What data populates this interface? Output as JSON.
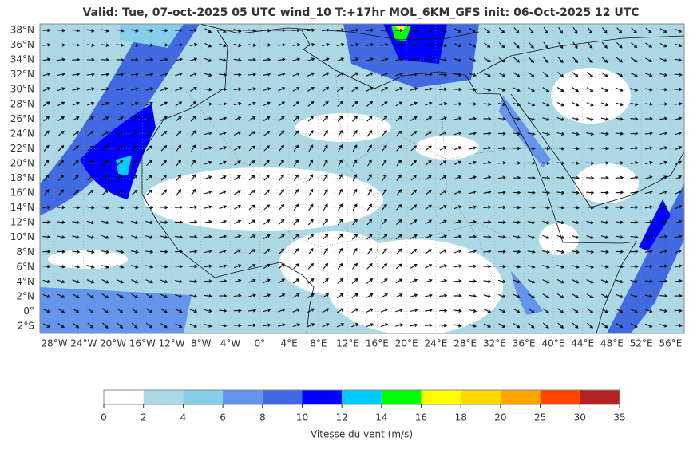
{
  "header": {
    "title": "Valid: Tue, 07-oct-2025   05 UTC   wind_10   T:+17hr   MOL_6KM_GFS   init: 06-Oct-2025    12 UTC"
  },
  "map": {
    "lat_labels": [
      "38°N",
      "36°N",
      "34°N",
      "32°N",
      "30°N",
      "28°N",
      "26°N",
      "24°N",
      "22°N",
      "20°N",
      "18°N",
      "16°N",
      "14°N",
      "12°N",
      "10°N",
      "8°N",
      "6°N",
      "4°N",
      "2°N",
      "0°",
      "2°S"
    ],
    "lon_labels": [
      "28°W",
      "24°W",
      "20°W",
      "16°W",
      "12°W",
      "8°W",
      "4°W",
      "0°",
      "4°E",
      "8°E",
      "12°E",
      "16°E",
      "20°E",
      "24°E",
      "28°E",
      "32°E",
      "36°E",
      "40°E",
      "44°E",
      "48°E",
      "52°E",
      "56°E"
    ]
  },
  "colorbar": {
    "ticks": [
      "0",
      "2",
      "4",
      "6",
      "8",
      "10",
      "12",
      "14",
      "16",
      "18",
      "20",
      "25",
      "30",
      "35"
    ],
    "colors": [
      "#ffffff",
      "#add8e6",
      "#87ceeb",
      "#6495ed",
      "#4169e1",
      "#0000ff",
      "#00ccff",
      "#00ff00",
      "#ffff00",
      "#ffd700",
      "#ffa500",
      "#ff4500",
      "#b22222"
    ],
    "label": "Vitesse du vent (m/s)"
  }
}
